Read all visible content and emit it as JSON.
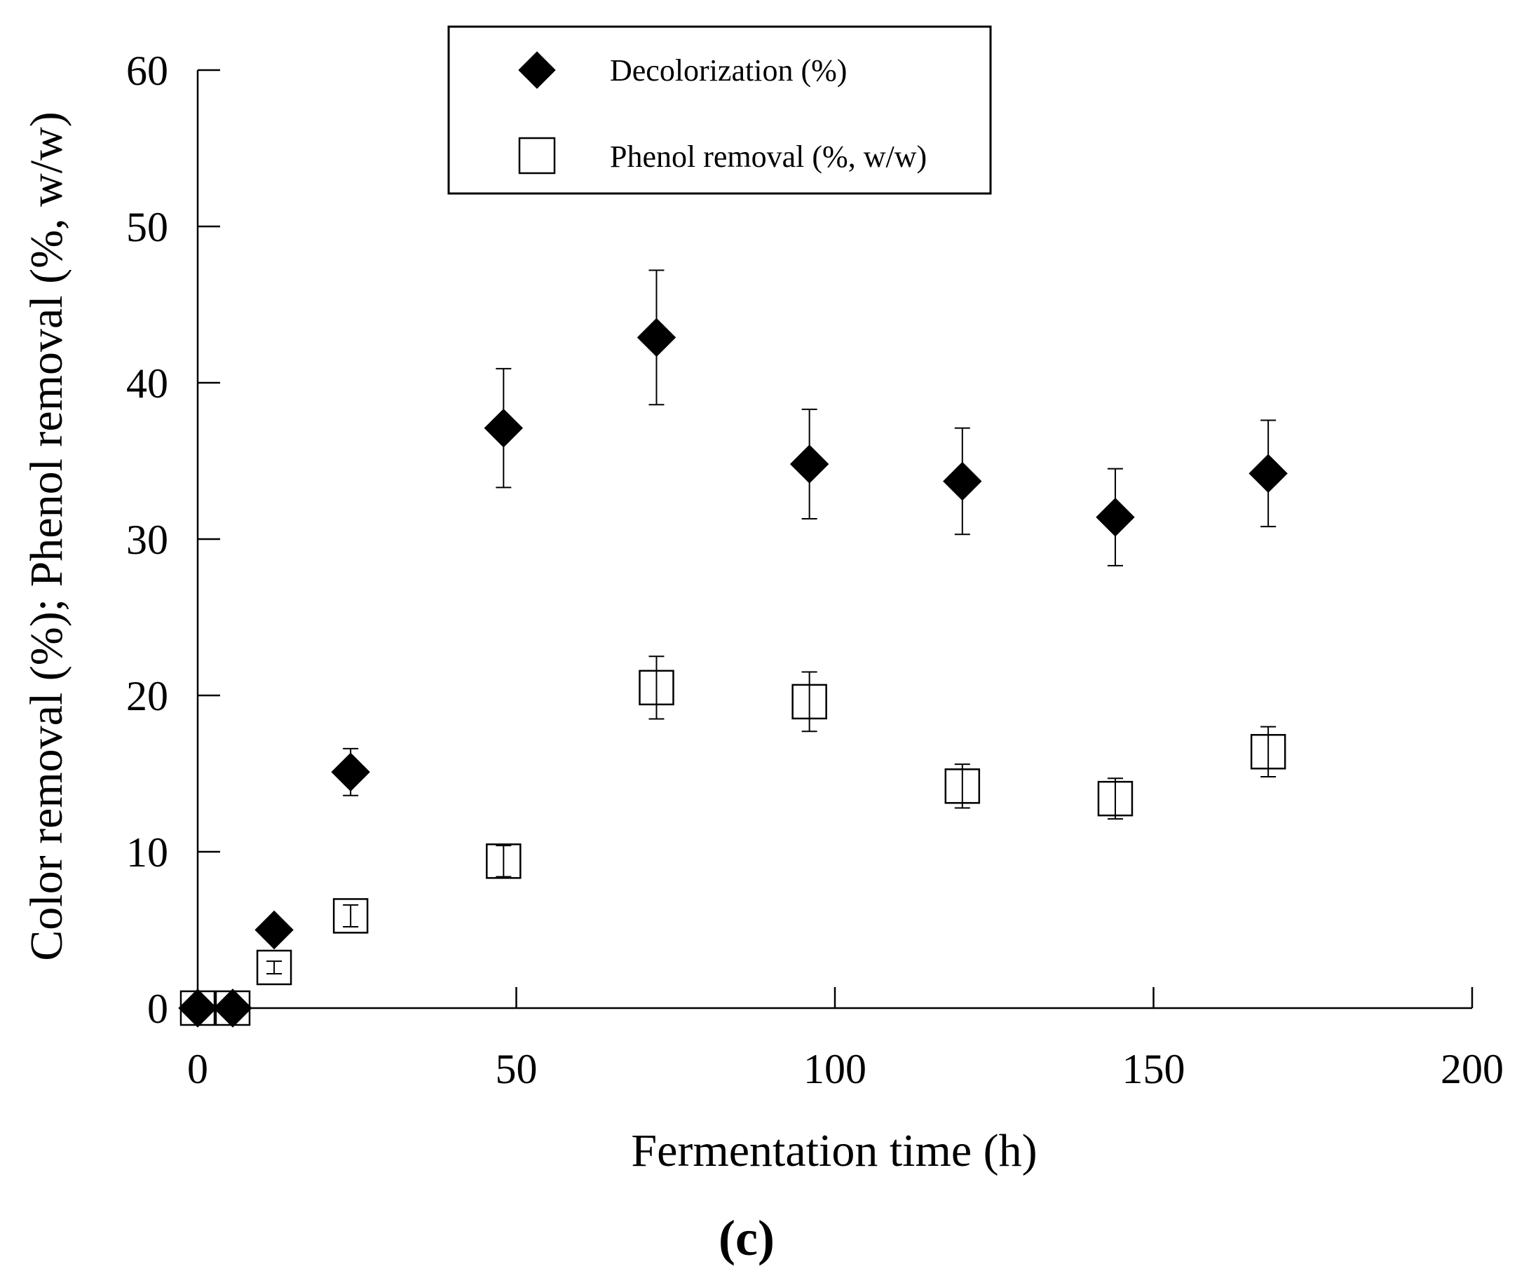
{
  "chart_data": {
    "type": "scatter",
    "xlabel": "Fermentation time (h)",
    "ylabel": "Color removal (%); Phenol removal (%, w/w)",
    "xlim": [
      0,
      200
    ],
    "ylim": [
      0,
      60
    ],
    "x_ticks": [
      "0",
      "50",
      "100",
      "150",
      "200"
    ],
    "y_ticks": [
      "0",
      "10",
      "20",
      "30",
      "40",
      "50",
      "60"
    ],
    "grid": false,
    "legend_position": "top-center",
    "panel_label": "(c)",
    "series": [
      {
        "name": "Decolorization (%)",
        "marker": "filled-diamond",
        "color": "#000000",
        "x": [
          0,
          5.5,
          12,
          24,
          48,
          72,
          96,
          120,
          144,
          168
        ],
        "y": [
          0,
          0,
          5,
          15.1,
          37.1,
          42.9,
          34.8,
          33.7,
          31.4,
          34.2
        ],
        "err": [
          0,
          0,
          0,
          1.5,
          3.8,
          4.3,
          3.5,
          3.4,
          3.1,
          3.4
        ]
      },
      {
        "name": "Phenol removal (%, w/w)",
        "marker": "open-square",
        "color": "#000000",
        "x": [
          0,
          5.5,
          12,
          24,
          48,
          72,
          96,
          120,
          144,
          168
        ],
        "y": [
          0,
          0,
          2.6,
          5.9,
          9.4,
          20.5,
          19.6,
          14.2,
          13.4,
          16.4
        ],
        "err": [
          0,
          0,
          0.4,
          0.7,
          1.0,
          2.0,
          1.9,
          1.4,
          1.3,
          1.6
        ]
      }
    ]
  }
}
